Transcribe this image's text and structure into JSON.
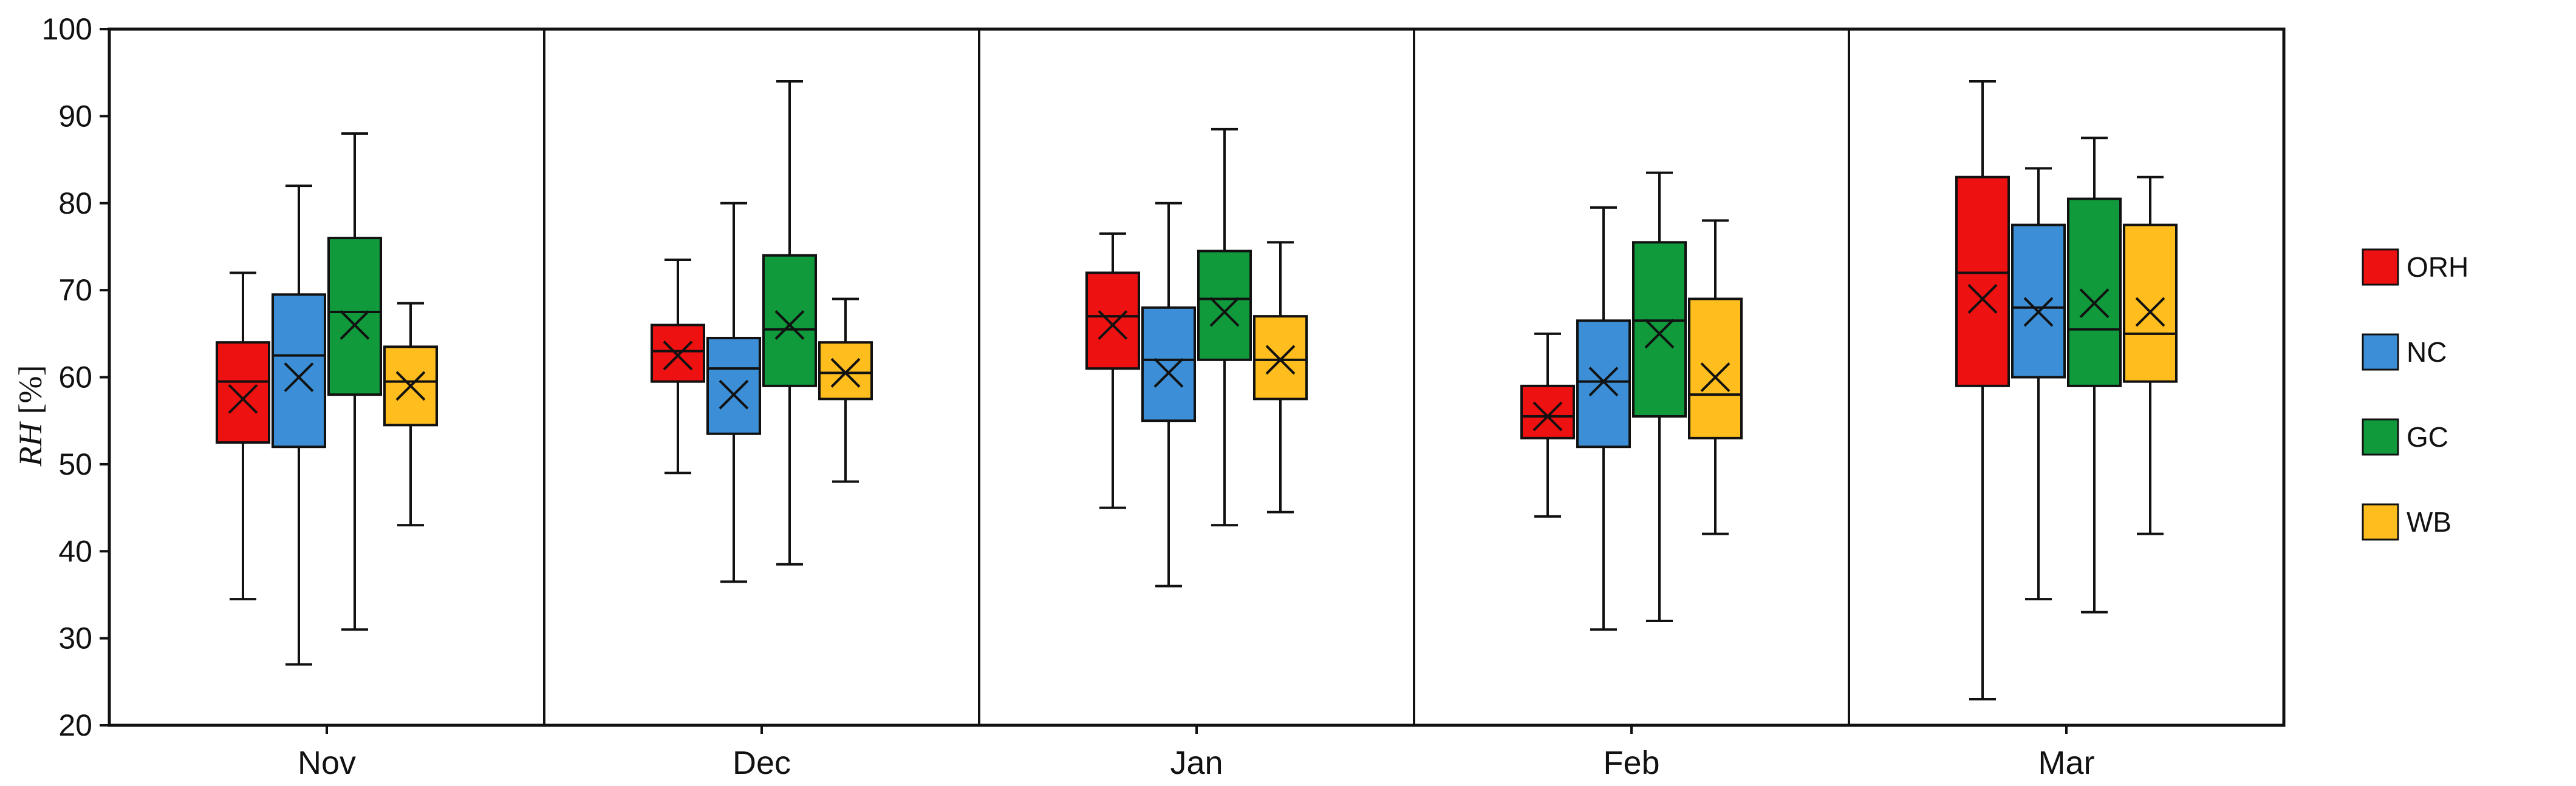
{
  "chart_data": {
    "type": "boxplot",
    "title": "",
    "xlabel": "",
    "ylabel": "RH [%]",
    "ylabel_var": "RH",
    "ylabel_unit": "[%]",
    "ylim": [
      20,
      100
    ],
    "yticks": [
      "20",
      "30",
      "40",
      "50",
      "60",
      "70",
      "80",
      "90",
      "100"
    ],
    "grid": false,
    "legend_position": "right",
    "categories": [
      "Nov",
      "Dec",
      "Jan",
      "Feb",
      "Mar"
    ],
    "series": [
      {
        "name": "ORH",
        "color": "#ee1111",
        "stats": [
          {
            "min": 34.5,
            "q1": 52.5,
            "median": 59.5,
            "q3": 64,
            "max": 72,
            "mean": 57.5
          },
          {
            "min": 49,
            "q1": 59.5,
            "median": 63,
            "q3": 66,
            "max": 73.5,
            "mean": 62.5
          },
          {
            "min": 45,
            "q1": 61,
            "median": 67,
            "q3": 72,
            "max": 76.5,
            "mean": 66
          },
          {
            "min": 44,
            "q1": 53,
            "median": 55.5,
            "q3": 59,
            "max": 65,
            "mean": 55.5
          },
          {
            "min": 23,
            "q1": 59,
            "median": 72,
            "q3": 83,
            "max": 94,
            "mean": 69
          }
        ]
      },
      {
        "name": "NC",
        "color": "#3c8fd6",
        "stats": [
          {
            "min": 27,
            "q1": 52,
            "median": 62.5,
            "q3": 69.5,
            "max": 82,
            "mean": 60
          },
          {
            "min": 36.5,
            "q1": 53.5,
            "median": 61,
            "q3": 64.5,
            "max": 80,
            "mean": 58
          },
          {
            "min": 36,
            "q1": 55,
            "median": 62,
            "q3": 68,
            "max": 80,
            "mean": 60.5
          },
          {
            "min": 31,
            "q1": 52,
            "median": 59.5,
            "q3": 66.5,
            "max": 79.5,
            "mean": 59.5
          },
          {
            "min": 34.5,
            "q1": 60,
            "median": 68,
            "q3": 77.5,
            "max": 84,
            "mean": 67.5
          }
        ]
      },
      {
        "name": "GC",
        "color": "#109a3c",
        "stats": [
          {
            "min": 31,
            "q1": 58,
            "median": 67.5,
            "q3": 76,
            "max": 88,
            "mean": 66
          },
          {
            "min": 38.5,
            "q1": 59,
            "median": 65.5,
            "q3": 74,
            "max": 94,
            "mean": 66
          },
          {
            "min": 43,
            "q1": 62,
            "median": 69,
            "q3": 74.5,
            "max": 88.5,
            "mean": 67.5
          },
          {
            "min": 32,
            "q1": 55.5,
            "median": 66.5,
            "q3": 75.5,
            "max": 83.5,
            "mean": 65
          },
          {
            "min": 33,
            "q1": 59,
            "median": 65.5,
            "q3": 80.5,
            "max": 87.5,
            "mean": 68.5
          }
        ]
      },
      {
        "name": "WB",
        "color": "#ffbe1e",
        "stats": [
          {
            "min": 43,
            "q1": 54.5,
            "median": 59.5,
            "q3": 63.5,
            "max": 68.5,
            "mean": 59
          },
          {
            "min": 48,
            "q1": 57.5,
            "median": 60.5,
            "q3": 64,
            "max": 69,
            "mean": 60.5
          },
          {
            "min": 44.5,
            "q1": 57.5,
            "median": 62,
            "q3": 67,
            "max": 75.5,
            "mean": 62
          },
          {
            "min": 42,
            "q1": 53,
            "median": 58,
            "q3": 69,
            "max": 78,
            "mean": 60
          },
          {
            "min": 42,
            "q1": 59.5,
            "median": 65,
            "q3": 77.5,
            "max": 83,
            "mean": 67.5
          }
        ]
      }
    ]
  }
}
